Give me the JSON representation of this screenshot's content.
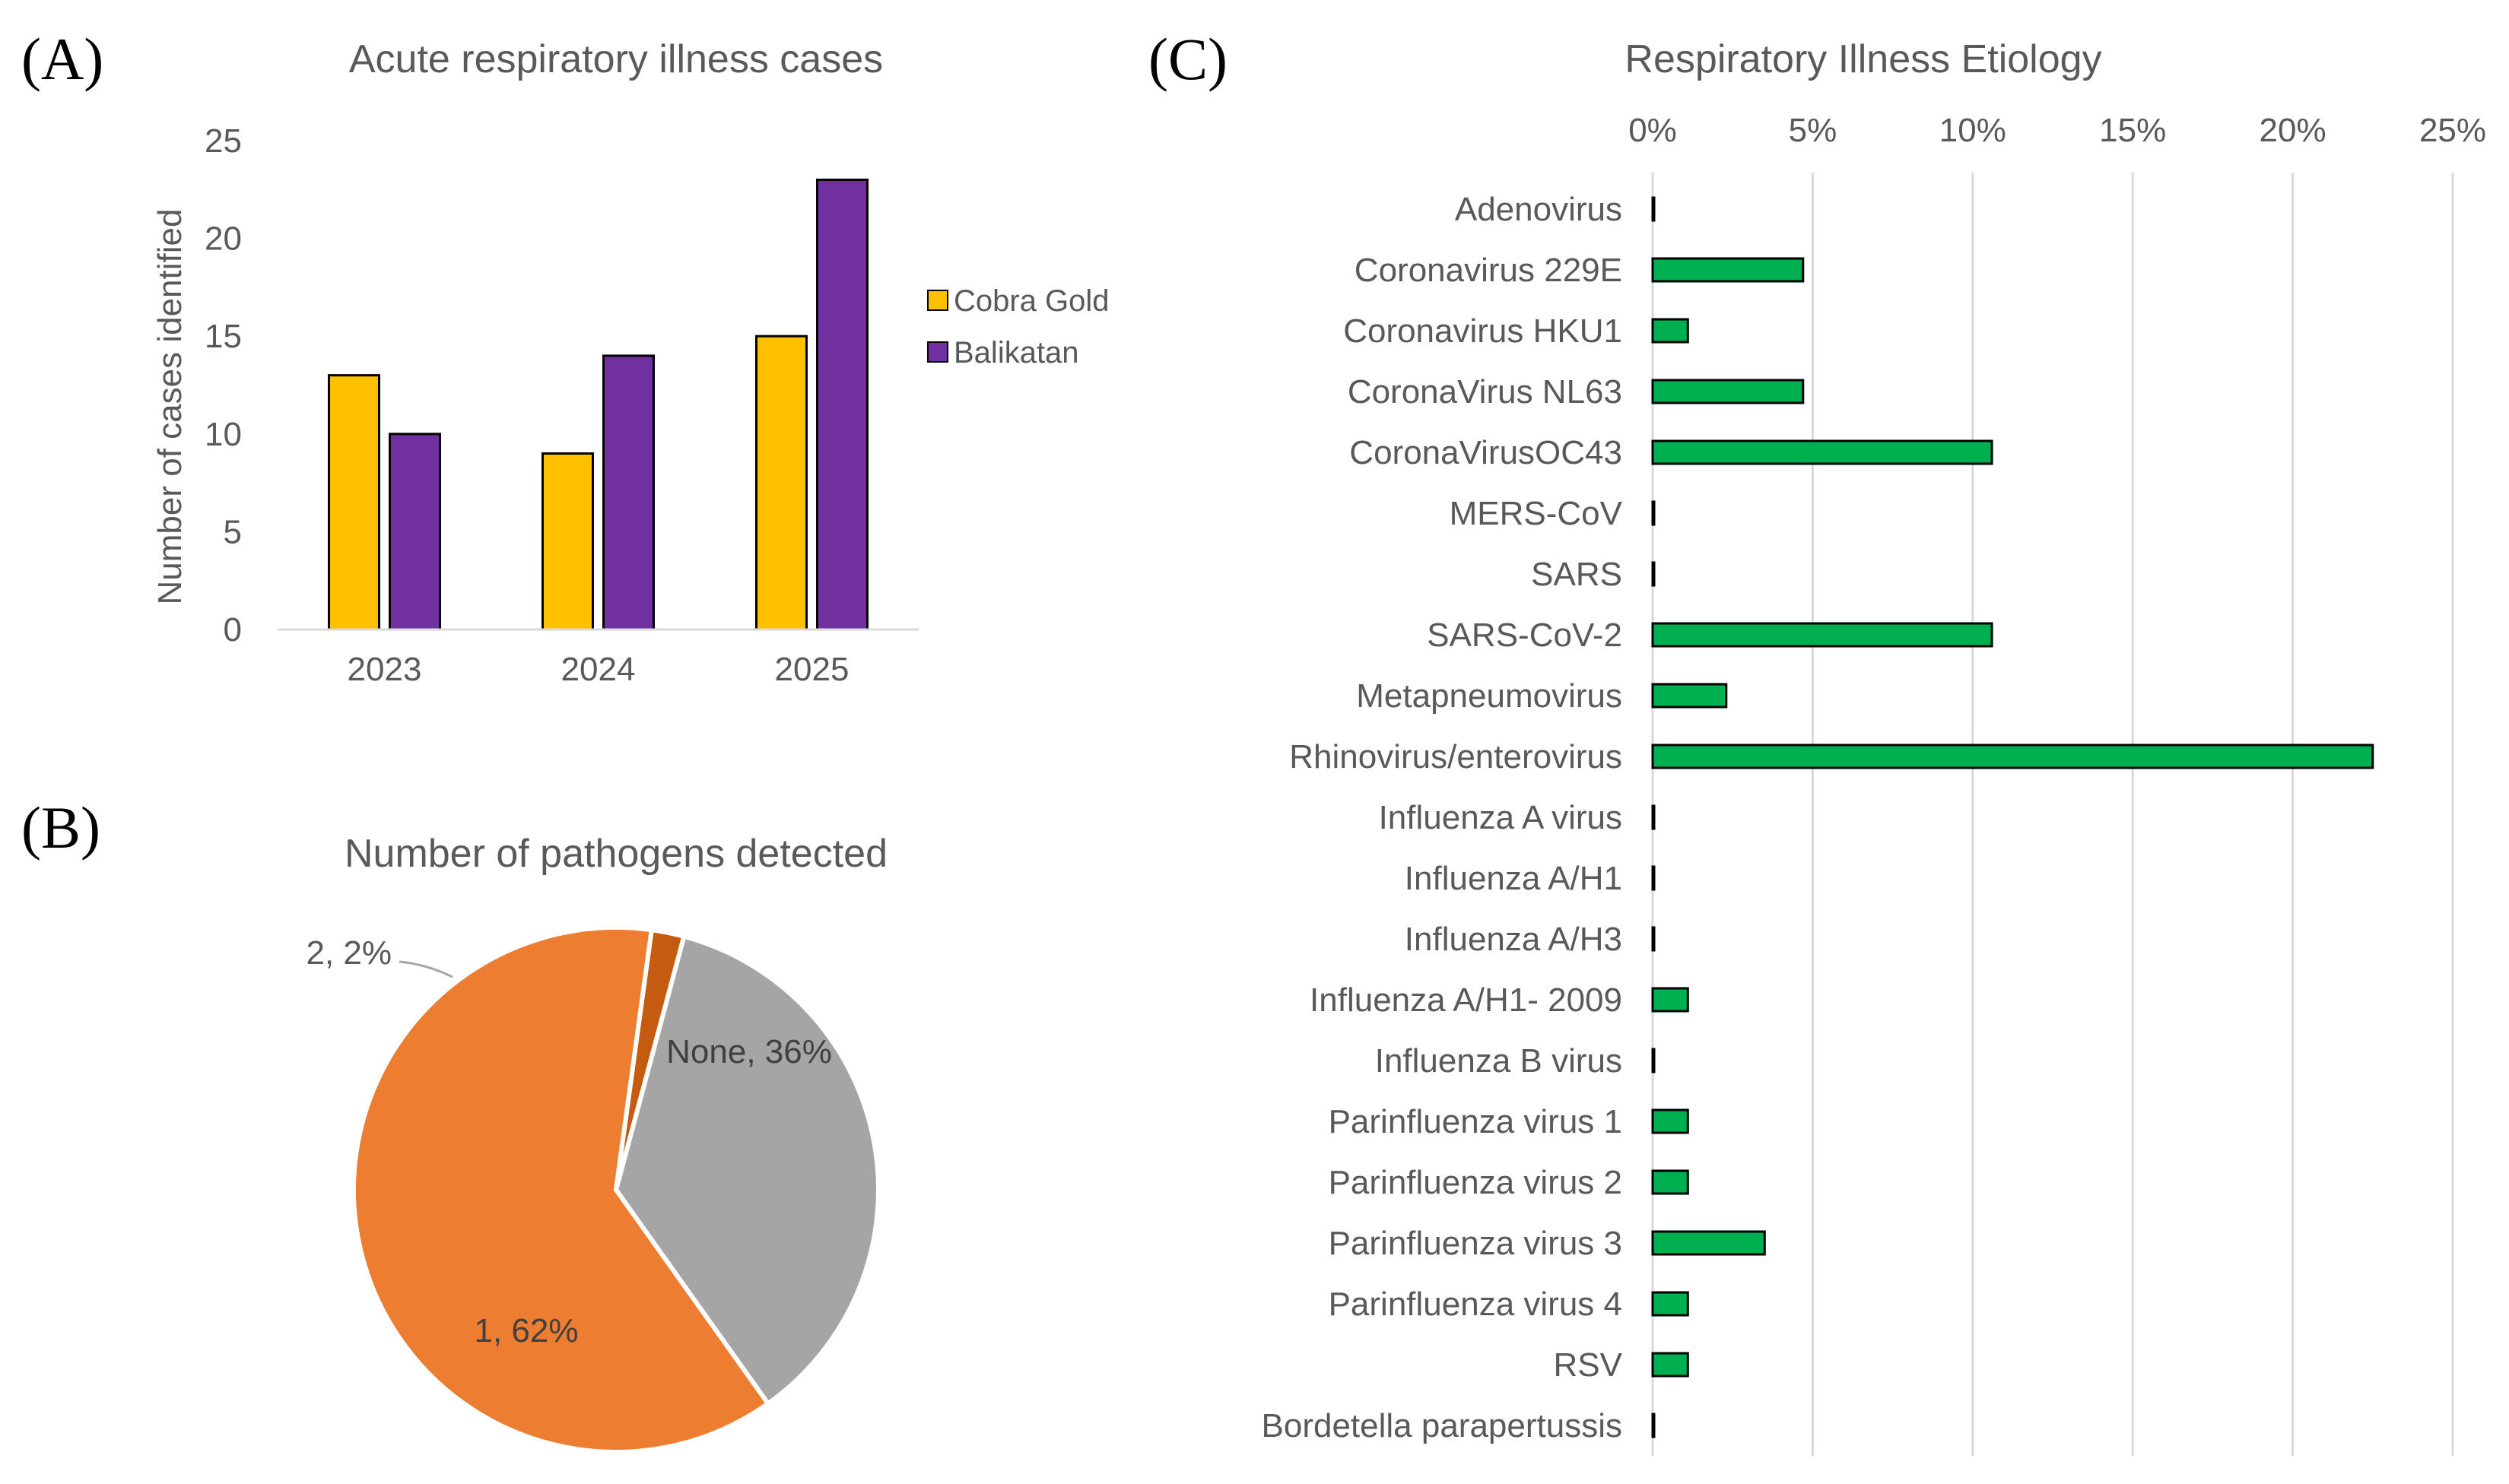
{
  "panels": {
    "a_label": "(A)",
    "b_label": "(B)",
    "c_label": "(C)"
  },
  "colors": {
    "cobra_gold": "#FFC000",
    "balikatan": "#7030A0",
    "pie_one": "#ED7D31",
    "pie_two": "#C55A11",
    "pie_none": "#A5A5A5",
    "etiology_bar": "#00B050",
    "text": "#595959",
    "grid": "#D9D9D9"
  },
  "chart_data": [
    {
      "id": "A",
      "type": "bar",
      "title": "Acute respiratory illness cases",
      "xlabel": "",
      "ylabel": "Number of cases identified",
      "categories": [
        "2023",
        "2024",
        "2025"
      ],
      "series": [
        {
          "name": "Cobra Gold",
          "values": [
            13,
            9,
            15
          ]
        },
        {
          "name": "Balikatan",
          "values": [
            10,
            14,
            23
          ]
        }
      ],
      "ylim": [
        0,
        25
      ],
      "yticks": [
        "0",
        "5",
        "10",
        "15",
        "20",
        "25"
      ],
      "grid": false,
      "legend": "right"
    },
    {
      "id": "B",
      "type": "pie",
      "title": "Number of pathogens detected",
      "slices": [
        {
          "label": "None, 36%",
          "name": "None",
          "value": 36
        },
        {
          "label": "1, 62%",
          "name": "1",
          "value": 62
        },
        {
          "label": "2, 2%",
          "name": "2",
          "value": 2
        }
      ]
    },
    {
      "id": "C",
      "type": "bar",
      "orientation": "horizontal",
      "title": "Respiratory Illness Etiology",
      "categories": [
        "Adenovirus",
        "Coronavirus 229E",
        "Coronavirus HKU1",
        "CoronaVirus NL63",
        "CoronaVirusOC43",
        "MERS-CoV",
        "SARS",
        "SARS-CoV-2",
        "Metapneumovirus",
        "Rhinovirus/enterovirus",
        "Influenza A virus",
        "Influenza A/H1",
        "Influenza A/H3",
        "Influenza A/H1- 2009",
        "Influenza B virus",
        "Parinfluenza virus 1",
        "Parinfluenza virus 2",
        "Parinfluenza virus 3",
        "Parinfluenza virus 4",
        "RSV",
        "Bordetella parapertussis"
      ],
      "values": [
        0,
        4.7,
        1.1,
        4.7,
        10.6,
        0,
        0,
        10.6,
        2.3,
        22.5,
        0,
        0,
        0,
        1.1,
        0,
        1.1,
        1.1,
        3.5,
        1.1,
        1.1,
        0
      ],
      "xlim": [
        0,
        25
      ],
      "xticks": [
        "0%",
        "5%",
        "10%",
        "15%",
        "20%",
        "25%"
      ],
      "grid": true,
      "axis_position": "top"
    }
  ]
}
